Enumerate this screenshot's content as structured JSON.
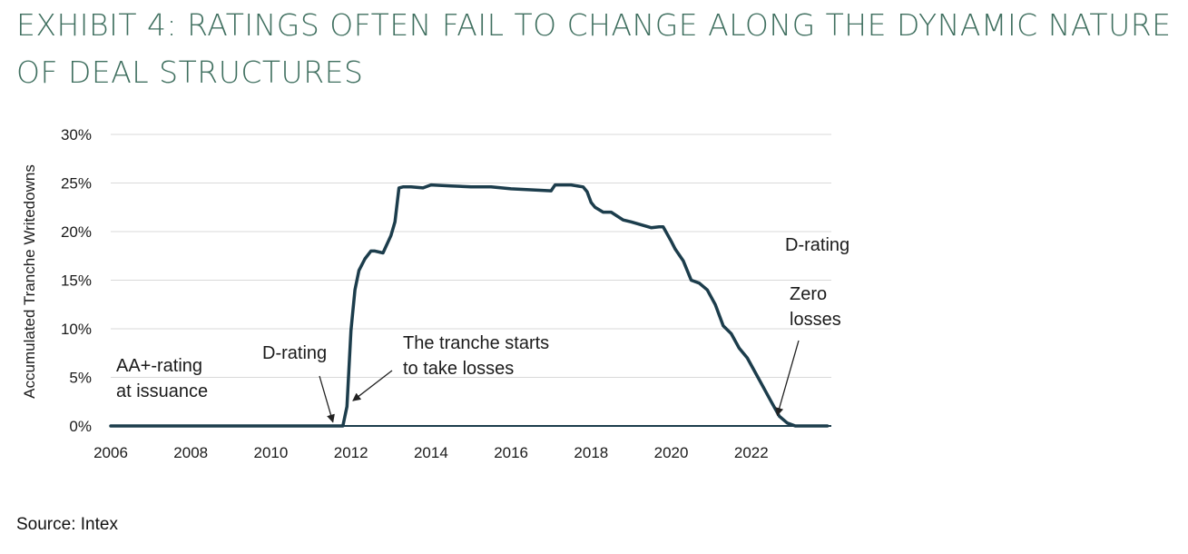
{
  "title": "EXHIBIT 4: RATINGS OFTEN FAIL TO CHANGE ALONG THE DYNAMIC NATURE OF DEAL STRUCTURES",
  "source": "Source: Intex",
  "colors": {
    "title": "#3f6f5f",
    "line": "#1c3d4c",
    "grid": "#d9d9d9",
    "annotation": "#222222"
  },
  "chart_data": {
    "type": "line",
    "ylabel": "Accumulated Tranche Writedowns",
    "xlabel": "",
    "xlim": [
      2006,
      2024
    ],
    "ylim": [
      0,
      30
    ],
    "x_ticks": [
      2006,
      2008,
      2010,
      2012,
      2014,
      2016,
      2018,
      2020,
      2022
    ],
    "x_tick_labels": [
      "2006",
      "2008",
      "2010",
      "2012",
      "2014",
      "2016",
      "2018",
      "2020",
      "2022"
    ],
    "y_ticks": [
      0,
      5,
      10,
      15,
      20,
      25,
      30
    ],
    "y_tick_labels": [
      "0%",
      "5%",
      "10%",
      "15%",
      "20%",
      "25%",
      "30%"
    ],
    "grid": "horizontal",
    "series": [
      {
        "x": [
          2006,
          2011.8,
          2011.9,
          2012.0,
          2012.1,
          2012.2,
          2012.35,
          2012.5,
          2012.6,
          2012.8,
          2013.0,
          2013.1,
          2013.2,
          2013.3,
          2013.5,
          2013.8,
          2014.0,
          2014.5,
          2015.0,
          2015.5,
          2016.0,
          2016.5,
          2017.0,
          2017.1,
          2017.5,
          2017.8,
          2017.9,
          2018.0,
          2018.1,
          2018.3,
          2018.5,
          2018.8,
          2019.0,
          2019.5,
          2019.7,
          2019.8,
          2020.0,
          2020.1,
          2020.3,
          2020.5,
          2020.7,
          2020.9,
          2021.1,
          2021.3,
          2021.5,
          2021.7,
          2021.9,
          2022.1,
          2022.3,
          2022.5,
          2022.7,
          2022.9,
          2023.1,
          2023.9
        ],
        "y": [
          0,
          0,
          2,
          9.8,
          14,
          16,
          17.2,
          18,
          18,
          17.8,
          19.6,
          21,
          24.5,
          24.6,
          24.6,
          24.5,
          24.8,
          24.7,
          24.6,
          24.6,
          24.4,
          24.3,
          24.2,
          24.8,
          24.8,
          24.6,
          24.1,
          23,
          22.5,
          22,
          22,
          21.2,
          21,
          20.4,
          20.5,
          20.5,
          19,
          18.2,
          17,
          15,
          14.7,
          14,
          12.5,
          10.3,
          9.5,
          8,
          7,
          5.5,
          4,
          2.5,
          1,
          0.3,
          0,
          0
        ]
      }
    ],
    "annotations": [
      {
        "lines": [
          "AA+-rating",
          "at issuance"
        ]
      },
      {
        "lines": [
          "D-rating"
        ],
        "arrow_to": [
          2011.55,
          0.4
        ]
      },
      {
        "lines": [
          "The tranche starts",
          "to take losses"
        ],
        "arrow_to": [
          2012.05,
          2.6
        ]
      },
      {
        "lines": [
          "D-rating"
        ]
      },
      {
        "lines": [
          "Zero",
          "losses"
        ],
        "arrow_to": [
          2022.65,
          1.1
        ]
      }
    ]
  }
}
